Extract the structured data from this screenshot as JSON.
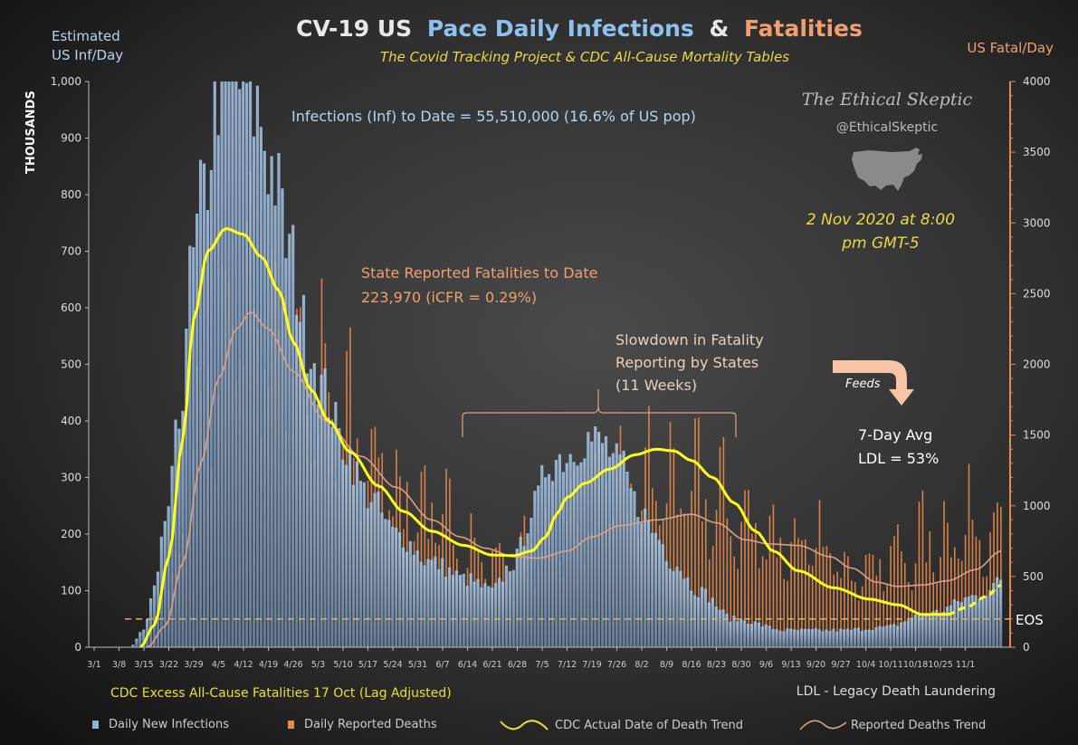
{
  "title": {
    "part1": "CV-19 US",
    "part2": "Pace Daily Infections",
    "part3": "&",
    "part4": "Fatalities"
  },
  "subtitle": "The Covid Tracking Project & CDC All-Cause Mortality Tables",
  "left_axis_title": {
    "line1": "Estimated",
    "line2": "US Inf/Day"
  },
  "left_axis_unit": "THOUSANDS",
  "right_axis_title": "US Fatal/Day",
  "brand": {
    "name": "The Ethical Skeptic",
    "handle": "@EthicalSkeptic"
  },
  "timestamp": {
    "line1": "2 Nov 2020 at 8:00",
    "line2": "pm GMT-5"
  },
  "annotations": {
    "infections_to_date": "Infections (Inf) to Date = 55,510,000  (16.6% of US pop)",
    "fatalities_line1": "State Reported Fatalities to Date",
    "fatalities_line2": "223,970  (iCFR = 0.29%)",
    "slowdown_line1": "Slowdown in Fatality",
    "slowdown_line2": "Reporting by States",
    "slowdown_line3": "(11 Weeks)",
    "feeds": "Feeds",
    "avg_line1": "7-Day Avg",
    "avg_line2": "LDL = 53%",
    "eos": "EOS",
    "cdc_excess": "CDC Excess All-Cause Fatalities 17 Oct (Lag Adjusted)",
    "ldl": "LDL - Legacy Death Laundering"
  },
  "legend": {
    "daily_infections": "Daily New Infections",
    "daily_deaths": "Daily Reported Deaths",
    "cdc_trend": "CDC Actual Date of Death Trend",
    "reported_trend": "Reported Deaths Trend"
  },
  "colors": {
    "background": "#2b2b2b",
    "infections": "#8fb3d9",
    "deaths": "#e8894d",
    "cdc_trend": "#ffff1a",
    "reported_trend": "#d9a088",
    "title_blue": "#8fc1ee",
    "title_orange": "#f0a070",
    "note_yellow": "#e8d84a"
  },
  "chart_data": {
    "type": "bar",
    "x_tick_labels": [
      "3/1",
      "3/8",
      "3/15",
      "3/22",
      "3/29",
      "4/5",
      "4/12",
      "4/19",
      "4/26",
      "5/3",
      "5/10",
      "5/17",
      "5/24",
      "5/31",
      "6/7",
      "6/14",
      "6/21",
      "6/28",
      "7/5",
      "7/12",
      "7/19",
      "7/26",
      "8/2",
      "8/9",
      "8/16",
      "8/23",
      "8/30",
      "9/6",
      "9/13",
      "9/20",
      "9/27",
      "10/4",
      "10/11",
      "10/18",
      "10/25",
      "11/1"
    ],
    "left_ylim": [
      0,
      1000
    ],
    "left_yticks": [
      0,
      100,
      200,
      300,
      400,
      500,
      600,
      700,
      800,
      900,
      1000
    ],
    "left_ytick_labels": [
      "0",
      "100",
      "200",
      "300",
      "400",
      "500",
      "600",
      "700",
      "800",
      "900",
      "1,000"
    ],
    "right_ylim": [
      0,
      4000
    ],
    "right_yticks": [
      0,
      500,
      1000,
      1500,
      2000,
      2500,
      3000,
      3500,
      4000
    ],
    "eos_level_right": 200,
    "infections_keypoints": [
      [
        0,
        0
      ],
      [
        10,
        0
      ],
      [
        14,
        30
      ],
      [
        17,
        100
      ],
      [
        21,
        250
      ],
      [
        24,
        400
      ],
      [
        27,
        650
      ],
      [
        31,
        800
      ],
      [
        35,
        1000
      ],
      [
        41,
        1000
      ],
      [
        46,
        950
      ],
      [
        50,
        850
      ],
      [
        55,
        700
      ],
      [
        60,
        550
      ],
      [
        65,
        450
      ],
      [
        70,
        360
      ],
      [
        77,
        270
      ],
      [
        85,
        200
      ],
      [
        95,
        150
      ],
      [
        105,
        120
      ],
      [
        112,
        100
      ],
      [
        118,
        150
      ],
      [
        124,
        250
      ],
      [
        128,
        330
      ],
      [
        133,
        340
      ],
      [
        138,
        370
      ],
      [
        143,
        360
      ],
      [
        148,
        320
      ],
      [
        153,
        250
      ],
      [
        158,
        200
      ],
      [
        163,
        150
      ],
      [
        170,
        100
      ],
      [
        180,
        50
      ],
      [
        195,
        30
      ],
      [
        210,
        30
      ],
      [
        222,
        35
      ],
      [
        235,
        60
      ],
      [
        248,
        90
      ],
      [
        255,
        115
      ]
    ],
    "deaths_keypoints": [
      [
        0,
        0
      ],
      [
        14,
        0
      ],
      [
        18,
        100
      ],
      [
        23,
        500
      ],
      [
        28,
        1200
      ],
      [
        33,
        1800
      ],
      [
        38,
        2200
      ],
      [
        43,
        2450
      ],
      [
        48,
        2250
      ],
      [
        55,
        2000
      ],
      [
        62,
        1700
      ],
      [
        70,
        1450
      ],
      [
        80,
        1200
      ],
      [
        90,
        950
      ],
      [
        100,
        800
      ],
      [
        110,
        600
      ],
      [
        118,
        550
      ],
      [
        125,
        650
      ],
      [
        132,
        800
      ],
      [
        140,
        950
      ],
      [
        148,
        1050
      ],
      [
        158,
        1100
      ],
      [
        168,
        1050
      ],
      [
        175,
        950
      ],
      [
        185,
        800
      ],
      [
        195,
        700
      ],
      [
        205,
        650
      ],
      [
        215,
        550
      ],
      [
        225,
        600
      ],
      [
        235,
        700
      ],
      [
        245,
        800
      ],
      [
        255,
        850
      ]
    ],
    "cdc_trend_keypoints": [
      [
        13,
        0
      ],
      [
        17,
        40
      ],
      [
        21,
        160
      ],
      [
        25,
        370
      ],
      [
        28,
        580
      ],
      [
        32,
        700
      ],
      [
        37,
        740
      ],
      [
        42,
        730
      ],
      [
        47,
        690
      ],
      [
        52,
        630
      ],
      [
        56,
        540
      ],
      [
        61,
        455
      ],
      [
        66,
        400
      ],
      [
        72,
        345
      ],
      [
        80,
        285
      ],
      [
        87,
        240
      ],
      [
        95,
        205
      ],
      [
        104,
        180
      ],
      [
        112,
        163
      ],
      [
        118,
        162
      ],
      [
        123,
        170
      ],
      [
        127,
        195
      ],
      [
        130,
        235
      ],
      [
        133,
        265
      ],
      [
        138,
        290
      ],
      [
        145,
        315
      ],
      [
        152,
        340
      ],
      [
        158,
        350
      ],
      [
        163,
        347
      ],
      [
        168,
        330
      ],
      [
        174,
        300
      ],
      [
        180,
        255
      ],
      [
        186,
        205
      ],
      [
        191,
        170
      ],
      [
        198,
        135
      ],
      [
        208,
        105
      ],
      [
        218,
        85
      ],
      [
        226,
        75
      ],
      [
        233,
        58
      ],
      [
        240,
        58
      ],
      [
        245,
        70
      ],
      [
        251,
        90
      ],
      [
        255,
        110
      ]
    ],
    "reported_trend_keypoints": [
      [
        15,
        0
      ],
      [
        20,
        150
      ],
      [
        25,
        600
      ],
      [
        30,
        1300
      ],
      [
        35,
        1900
      ],
      [
        40,
        2250
      ],
      [
        44,
        2370
      ],
      [
        49,
        2250
      ],
      [
        56,
        1950
      ],
      [
        65,
        1600
      ],
      [
        75,
        1350
      ],
      [
        85,
        1130
      ],
      [
        95,
        900
      ],
      [
        103,
        780
      ],
      [
        110,
        700
      ],
      [
        118,
        640
      ],
      [
        125,
        630
      ],
      [
        133,
        680
      ],
      [
        140,
        780
      ],
      [
        148,
        860
      ],
      [
        158,
        900
      ],
      [
        168,
        940
      ],
      [
        175,
        880
      ],
      [
        183,
        760
      ],
      [
        190,
        730
      ],
      [
        198,
        720
      ],
      [
        207,
        640
      ],
      [
        213,
        560
      ],
      [
        220,
        460
      ],
      [
        226,
        430
      ],
      [
        233,
        440
      ],
      [
        240,
        470
      ],
      [
        248,
        550
      ],
      [
        255,
        680
      ]
    ]
  }
}
